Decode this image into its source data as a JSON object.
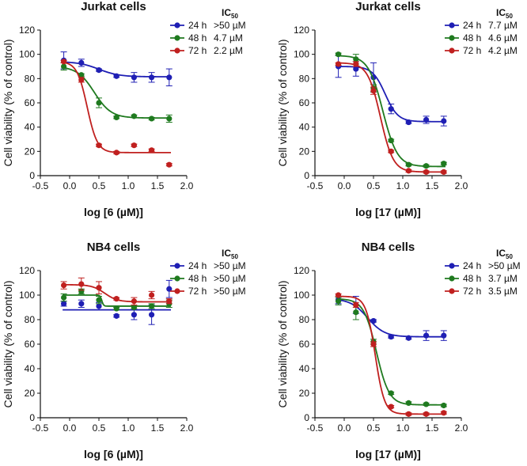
{
  "colors": {
    "24h": "#1f1fb4",
    "48h": "#1f7a1f",
    "72h": "#c0201f",
    "axis": "#111111"
  },
  "chart_data": [
    {
      "type": "scatter",
      "title": "Jurkat cells",
      "xlabel": "log [6 (µM)]",
      "ylabel": "Cell viability (% of control)",
      "xlim": [
        -0.5,
        2.0
      ],
      "ylim": [
        0,
        120
      ],
      "xticks": [
        "-0.5",
        "0.0",
        "0.5",
        "1.0",
        "1.5",
        "2.0"
      ],
      "yticks": [
        "0",
        "20",
        "40",
        "60",
        "80",
        "100",
        "120"
      ],
      "legend_title": "IC",
      "legend_title_sub": "50",
      "series": [
        {
          "name": "24 h",
          "ic50": ">50 µM",
          "color_key": "24h",
          "x": [
            -0.1,
            0.2,
            0.5,
            0.8,
            1.1,
            1.4,
            1.7
          ],
          "y": [
            95,
            93,
            87,
            82,
            81,
            81,
            81
          ],
          "err": [
            7,
            3,
            1,
            1,
            4,
            4,
            7
          ],
          "fit": {
            "top": 94,
            "bottom": 81.5,
            "logec50": 0.5,
            "hill": 2.5
          }
        },
        {
          "name": "48 h",
          "ic50": "4.7 µM",
          "color_key": "48h",
          "x": [
            -0.1,
            0.2,
            0.5,
            0.8,
            1.1,
            1.4,
            1.7
          ],
          "y": [
            90,
            83,
            60,
            48,
            49,
            47,
            47
          ],
          "err": [
            3,
            1,
            4,
            1,
            1,
            1,
            3
          ],
          "fit": {
            "top": 90,
            "bottom": 47.5,
            "logec50": 0.42,
            "hill": 3
          }
        },
        {
          "name": "72 h",
          "ic50": "2.2 µM",
          "color_key": "72h",
          "x": [
            -0.1,
            0.2,
            0.5,
            0.8,
            1.1,
            1.4,
            1.7
          ],
          "y": [
            94,
            79,
            25,
            19,
            25,
            21,
            9
          ],
          "err": [
            1,
            2,
            1,
            1,
            1,
            1,
            1
          ],
          "fit": {
            "top": 94,
            "bottom": 19,
            "logec50": 0.3,
            "hill": 5
          }
        }
      ]
    },
    {
      "type": "scatter",
      "title": "Jurkat cells",
      "xlabel": "log [17 (µM)]",
      "ylabel": "Cell viability (% of control)",
      "xlim": [
        -0.5,
        2.0
      ],
      "ylim": [
        0,
        120
      ],
      "xticks": [
        "-0.5",
        "0.0",
        "0.5",
        "1.0",
        "1.5",
        "2.0"
      ],
      "yticks": [
        "0",
        "20",
        "40",
        "60",
        "80",
        "100",
        "120"
      ],
      "legend_title": "IC",
      "legend_title_sub": "50",
      "series": [
        {
          "name": "24 h",
          "ic50": "7.7 µM",
          "color_key": "24h",
          "x": [
            -0.1,
            0.2,
            0.5,
            0.8,
            1.1,
            1.4,
            1.7
          ],
          "y": [
            90,
            88,
            81,
            55,
            44,
            46,
            45
          ],
          "err": [
            9,
            6,
            12,
            4,
            1,
            3,
            4
          ],
          "fit": {
            "top": 90,
            "bottom": 44.5,
            "logec50": 0.7,
            "hill": 4
          }
        },
        {
          "name": "48 h",
          "ic50": "4.6 µM",
          "color_key": "48h",
          "x": [
            -0.1,
            0.2,
            0.5,
            0.8,
            1.1,
            1.4,
            1.7
          ],
          "y": [
            100,
            96,
            72,
            29,
            9,
            8,
            10
          ],
          "err": [
            1,
            4,
            3,
            1,
            1,
            1,
            1
          ],
          "fit": {
            "top": 99,
            "bottom": 7.5,
            "logec50": 0.66,
            "hill": 3.5
          }
        },
        {
          "name": "72 h",
          "ic50": "4.2 µM",
          "color_key": "72h",
          "x": [
            -0.1,
            0.2,
            0.5,
            0.8,
            1.1,
            1.4,
            1.7
          ],
          "y": [
            92,
            92,
            70,
            20,
            4,
            3,
            3
          ],
          "err": [
            1,
            2,
            3,
            1,
            1,
            1,
            1
          ],
          "fit": {
            "top": 93,
            "bottom": 3,
            "logec50": 0.62,
            "hill": 4
          }
        }
      ]
    },
    {
      "type": "scatter",
      "title": "NB4 cells",
      "xlabel": "log [6 (µM)]",
      "ylabel": "Cell viability (% of control)",
      "xlim": [
        -0.5,
        2.0
      ],
      "ylim": [
        0,
        120
      ],
      "xticks": [
        "-0.5",
        "0.0",
        "0.5",
        "1.0",
        "1.5",
        "2.0"
      ],
      "yticks": [
        "0",
        "20",
        "40",
        "60",
        "80",
        "100",
        "120"
      ],
      "legend_title": "IC",
      "legend_title_sub": "50",
      "series": [
        {
          "name": "24 h",
          "ic50": ">50 µM",
          "color_key": "24h",
          "x": [
            -0.1,
            0.2,
            0.5,
            0.8,
            1.1,
            1.4,
            1.7
          ],
          "y": [
            93,
            93,
            91,
            83,
            84,
            84,
            105
          ],
          "err": [
            2,
            3,
            3,
            1,
            4,
            8,
            7
          ],
          "fit": {
            "top": 88,
            "bottom": 88,
            "logec50": 0.5,
            "hill": 1
          }
        },
        {
          "name": "48 h",
          "ic50": ">50 µM",
          "color_key": "48h",
          "x": [
            -0.1,
            0.2,
            0.5,
            0.8,
            1.1,
            1.4,
            1.7
          ],
          "y": [
            98,
            103,
            96,
            89,
            90,
            91,
            93
          ],
          "err": [
            3,
            2,
            3,
            1,
            1,
            2,
            3
          ],
          "fit": {
            "top": 100,
            "bottom": 91,
            "logec50": 0.55,
            "hill": 30
          }
        },
        {
          "name": "72 h",
          "ic50": ">50 µM",
          "color_key": "72h",
          "x": [
            -0.1,
            0.2,
            0.5,
            0.8,
            1.1,
            1.4,
            1.7
          ],
          "y": [
            108,
            109,
            106,
            97,
            95,
            100,
            95
          ],
          "err": [
            3,
            5,
            5,
            1,
            3,
            3,
            2
          ],
          "fit": {
            "top": 108.5,
            "bottom": 94.5,
            "logec50": 0.6,
            "hill": 4
          }
        }
      ]
    },
    {
      "type": "scatter",
      "title": "NB4 cells",
      "xlabel": "log [17 (µM)]",
      "ylabel": "Cell viability (% of control)",
      "xlim": [
        -0.5,
        2.0
      ],
      "ylim": [
        0,
        120
      ],
      "xticks": [
        "-0.5",
        "0.0",
        "0.5",
        "1.0",
        "1.5",
        "2.0"
      ],
      "yticks": [
        "0",
        "20",
        "40",
        "60",
        "80",
        "100",
        "120"
      ],
      "legend_title": "IC",
      "legend_title_sub": "50",
      "series": [
        {
          "name": "24 h",
          "ic50": ">50 µM",
          "color_key": "24h",
          "x": [
            -0.1,
            0.2,
            0.5,
            0.8,
            1.1,
            1.4,
            1.7
          ],
          "y": [
            96,
            92,
            79,
            66,
            65,
            67,
            67
          ],
          "err": [
            3,
            7,
            1,
            1,
            1,
            4,
            4
          ],
          "fit": {
            "top": 97,
            "bottom": 66,
            "logec50": 0.4,
            "hill": 3
          }
        },
        {
          "name": "48 h",
          "ic50": "3.7 µM",
          "color_key": "48h",
          "x": [
            -0.1,
            0.2,
            0.5,
            0.8,
            1.1,
            1.4,
            1.7
          ],
          "y": [
            95,
            86,
            62,
            20,
            12,
            11,
            10
          ],
          "err": [
            3,
            6,
            2,
            1,
            1,
            1,
            1
          ],
          "fit": {
            "top": 97,
            "bottom": 10.5,
            "logec50": 0.55,
            "hill": 4
          }
        },
        {
          "name": "72 h",
          "ic50": "3.5 µM",
          "color_key": "72h",
          "x": [
            -0.1,
            0.2,
            0.5,
            0.8,
            1.1,
            1.4,
            1.7
          ],
          "y": [
            100,
            92,
            60,
            9,
            3,
            3,
            4
          ],
          "err": [
            1,
            2,
            2,
            1,
            1,
            1,
            1
          ],
          "fit": {
            "top": 99,
            "bottom": 3,
            "logec50": 0.53,
            "hill": 5.5
          }
        }
      ]
    }
  ]
}
